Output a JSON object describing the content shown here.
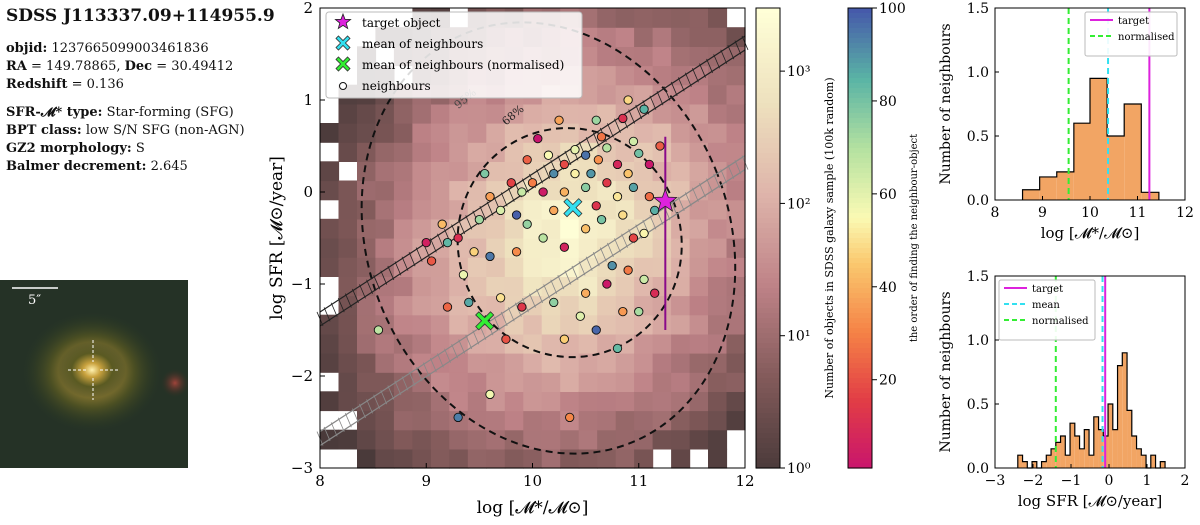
{
  "info": {
    "title": "SDSS J113337.09+114955.9",
    "objid_label": "objid:",
    "objid": "1237665099003461836",
    "ra_label": "RA",
    "ra": "= 149.78865,",
    "dec_label": "Dec",
    "dec": "= 30.49412",
    "redshift_label": "Redshift",
    "redshift": "= 0.136",
    "sfr_type_label": "SFR-𝓜* type:",
    "sfr_type": "Star-forming (SFG)",
    "bpt_label": "BPT class:",
    "bpt": "low S/N SFG (non-AGN)",
    "gz2_label": "GZ2 morphology:",
    "gz2": "S",
    "balmer_label": "Balmer decrement:",
    "balmer": "2.645"
  },
  "thumbnail": {
    "scale_label": "5″",
    "crosshair_color": "#ffffff"
  },
  "chart_data": [
    {
      "type": "heatmap",
      "xlabel": "log [𝓜*/𝓜⊙]",
      "ylabel": "log SFR [𝓜⊙/year]",
      "xlim": [
        8,
        12
      ],
      "ylim": [
        -3,
        2
      ],
      "xticks": [
        8,
        9,
        10,
        11,
        12
      ],
      "yticks": [
        -3,
        -2,
        -1,
        0,
        1,
        2
      ],
      "colorbar1": {
        "label": "Number of objects in SDSS galaxy sample (100k random)",
        "scale": "log",
        "range": [
          1,
          3000
        ],
        "ticks": [
          "10⁰",
          "10¹",
          "10²",
          "10³"
        ]
      },
      "colorbar2": {
        "label": "the order of finding the neighbour-object",
        "range": [
          1,
          100
        ],
        "ticks": [
          20,
          40,
          60,
          80,
          100
        ]
      },
      "contours": [
        {
          "label": "68%",
          "cx": 10.35,
          "cy": -0.55,
          "rx": 1.05,
          "ry": 1.25
        },
        {
          "label": "95%",
          "cx": 10.15,
          "cy": -0.5,
          "rx": 1.7,
          "ry": 2.4
        }
      ],
      "ms_lines": [
        {
          "x": [
            8,
            12
          ],
          "y": [
            -1.38,
            1.62
          ]
        },
        {
          "x": [
            8,
            12
          ],
          "y": [
            -2.68,
            0.32
          ]
        }
      ],
      "target": {
        "x": 11.25,
        "y": -0.1,
        "yerr_low": -1.5,
        "yerr_high": 0.6,
        "color": "#dd22dd"
      },
      "mean_neighbours": {
        "x": 10.38,
        "y": -0.17,
        "color": "#33e0f0"
      },
      "mean_normalised": {
        "x": 9.55,
        "y": -1.4,
        "color": "#33ee33"
      },
      "legend": {
        "position": "top-left",
        "items": [
          "target object",
          "mean of neighbours",
          "mean of neighbours (normalised)",
          "neighbours"
        ]
      },
      "neighbours": [
        [
          10.05,
          0.58
        ],
        [
          10.25,
          0.78
        ],
        [
          10.6,
          0.78
        ],
        [
          10.85,
          0.8
        ],
        [
          10.9,
          1.0
        ],
        [
          11.05,
          0.9
        ],
        [
          11.2,
          0.5
        ],
        [
          10.4,
          0.46
        ],
        [
          10.5,
          0.4
        ],
        [
          10.62,
          0.35
        ],
        [
          10.7,
          0.48
        ],
        [
          10.8,
          0.3
        ],
        [
          10.9,
          0.2
        ],
        [
          11.0,
          0.42
        ],
        [
          10.3,
          0.3
        ],
        [
          10.15,
          0.4
        ],
        [
          10.2,
          0.2
        ],
        [
          10.0,
          0.1
        ],
        [
          9.9,
          0.0
        ],
        [
          10.1,
          0.0
        ],
        [
          10.3,
          0.0
        ],
        [
          10.5,
          0.05
        ],
        [
          10.7,
          0.1
        ],
        [
          10.8,
          -0.05
        ],
        [
          10.95,
          0.05
        ],
        [
          11.1,
          -0.05
        ],
        [
          9.7,
          -0.2
        ],
        [
          9.85,
          -0.25
        ],
        [
          9.6,
          -0.05
        ],
        [
          9.5,
          -0.3
        ],
        [
          9.3,
          -0.5
        ],
        [
          9.45,
          -0.65
        ],
        [
          9.2,
          -0.55
        ],
        [
          9.05,
          -0.75
        ],
        [
          9.35,
          -0.9
        ],
        [
          9.6,
          -0.7
        ],
        [
          9.85,
          -0.65
        ],
        [
          10.1,
          -0.5
        ],
        [
          10.3,
          -0.6
        ],
        [
          10.5,
          -0.4
        ],
        [
          10.65,
          -0.3
        ],
        [
          10.95,
          -0.5
        ],
        [
          11.05,
          -0.45
        ],
        [
          10.75,
          -0.8
        ],
        [
          10.9,
          -0.85
        ],
        [
          11.05,
          -0.95
        ],
        [
          10.7,
          -1.0
        ],
        [
          10.5,
          -1.1
        ],
        [
          10.2,
          -1.2
        ],
        [
          9.9,
          -1.25
        ],
        [
          9.7,
          -1.15
        ],
        [
          9.4,
          -1.2
        ],
        [
          9.2,
          -1.25
        ],
        [
          10.45,
          -1.35
        ],
        [
          10.6,
          -1.5
        ],
        [
          10.85,
          -1.3
        ],
        [
          11.0,
          -1.3
        ],
        [
          11.15,
          -1.1
        ],
        [
          10.3,
          -1.6
        ],
        [
          10.8,
          -1.7
        ],
        [
          9.75,
          -1.6
        ],
        [
          9.6,
          -2.2
        ],
        [
          9.3,
          -2.45
        ],
        [
          10.35,
          -2.45
        ],
        [
          8.55,
          -1.5
        ],
        [
          9.0,
          -0.55
        ],
        [
          9.15,
          -0.35
        ],
        [
          9.55,
          0.2
        ],
        [
          9.8,
          0.1
        ],
        [
          10.4,
          0.2
        ],
        [
          10.55,
          0.2
        ],
        [
          10.65,
          0.6
        ],
        [
          10.95,
          0.55
        ],
        [
          11.1,
          0.3
        ],
        [
          10.2,
          -0.2
        ],
        [
          9.95,
          -0.35
        ],
        [
          10.6,
          -0.15
        ],
        [
          10.85,
          -0.25
        ],
        [
          11.15,
          -0.2
        ],
        [
          9.95,
          0.35
        ]
      ]
    },
    {
      "type": "bar",
      "xlabel": "log [𝓜*/𝓜⊙]",
      "ylabel": "Number of neighbours",
      "xlim": [
        8,
        12
      ],
      "ylim": [
        0,
        1.5
      ],
      "xticks": [
        8,
        9,
        10,
        11,
        12
      ],
      "yticks": [
        "0.0",
        "0.5",
        "1.0",
        "1.5"
      ],
      "bin_edges": [
        8.58,
        8.94,
        9.3,
        9.66,
        10.0,
        10.36,
        10.72,
        11.08,
        11.45
      ],
      "values": [
        0.08,
        0.18,
        0.22,
        0.6,
        0.95,
        0.5,
        0.75,
        0.06
      ],
      "legend": {
        "position": "top-right",
        "items": [
          "target",
          "normalised"
        ]
      },
      "vlines": [
        {
          "name": "target",
          "x": 11.25,
          "color": "#dd22dd"
        },
        {
          "name": "mean",
          "x": 10.38,
          "color": "#33e0f0"
        },
        {
          "name": "normalised",
          "x": 9.55,
          "color": "#33ee33"
        }
      ]
    },
    {
      "type": "bar",
      "xlabel": "log SFR [𝓜⊙/year]",
      "ylabel": "Number of neighbours",
      "xlim": [
        -3,
        2
      ],
      "ylim": [
        0,
        1.5
      ],
      "xticks": [
        -3,
        -2,
        -1,
        0,
        1,
        2
      ],
      "yticks": [
        "0.0",
        "0.5",
        "1.0",
        "1.5"
      ],
      "bin_start": -2.4,
      "bin_width": 0.125,
      "values": [
        0.1,
        0.05,
        0.0,
        0.05,
        0.0,
        0.05,
        0.1,
        0.15,
        0.2,
        0.25,
        0.1,
        0.35,
        0.25,
        0.15,
        0.3,
        0.1,
        0.4,
        0.3,
        0.25,
        0.5,
        0.3,
        0.8,
        0.9,
        0.45,
        0.25,
        0.15,
        0.1,
        0.0,
        0.1,
        0.0,
        0.05
      ],
      "legend": {
        "position": "top-left",
        "items": [
          "target",
          "mean",
          "normalised"
        ]
      },
      "vlines": [
        {
          "name": "target",
          "x": -0.1,
          "color": "#dd22dd"
        },
        {
          "name": "mean",
          "x": -0.17,
          "color": "#33e0f0"
        },
        {
          "name": "normalised",
          "x": -1.4,
          "color": "#33ee33"
        }
      ]
    }
  ]
}
